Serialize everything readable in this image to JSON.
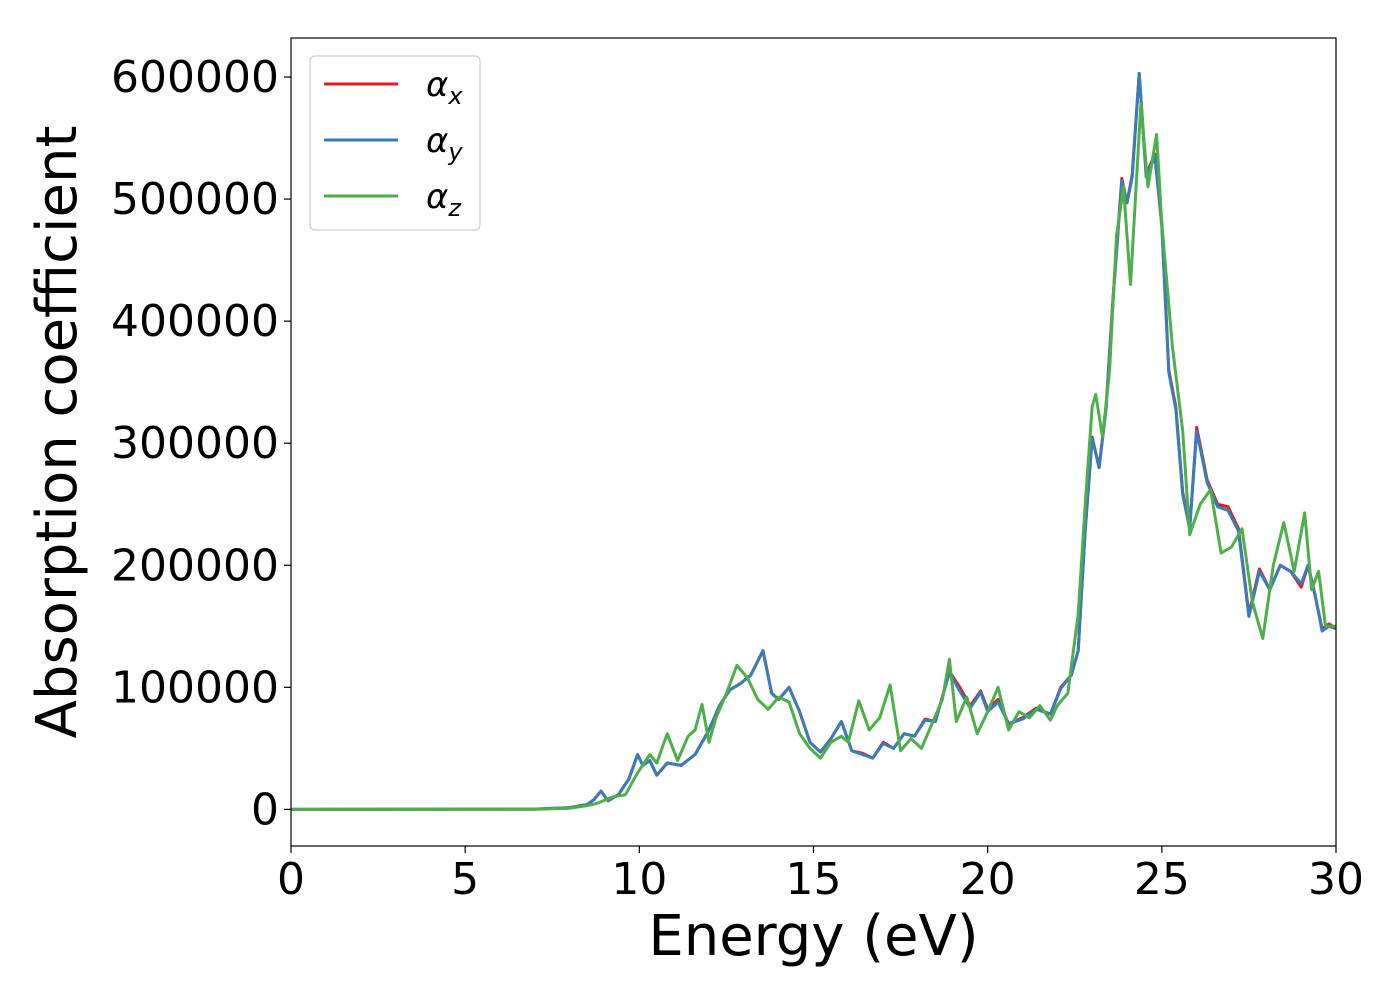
{
  "chart_data": {
    "type": "line",
    "title": "",
    "xlabel": "Energy (eV)",
    "ylabel": "Absorption coefficient",
    "xlim": [
      0,
      30
    ],
    "ylim": [
      -30000,
      632000
    ],
    "xticks": [
      0,
      5,
      10,
      15,
      20,
      25,
      30
    ],
    "yticks": [
      0,
      100000,
      200000,
      300000,
      400000,
      500000,
      600000
    ],
    "xtick_labels": [
      "0",
      "5",
      "10",
      "15",
      "20",
      "25",
      "30"
    ],
    "ytick_labels": [
      "0",
      "100000",
      "200000",
      "300000",
      "400000",
      "500000",
      "600000"
    ],
    "grid": false,
    "legend_position": "top-left",
    "series": [
      {
        "name": "α",
        "name_sub": "x",
        "color": "#e41a1c",
        "x": [
          0,
          7,
          8,
          8.5,
          8.7,
          8.9,
          9.1,
          9.4,
          9.7,
          9.95,
          10.1,
          10.3,
          10.5,
          10.8,
          11.2,
          11.6,
          12.0,
          12.3,
          12.6,
          12.9,
          13.2,
          13.55,
          13.8,
          14.0,
          14.3,
          14.6,
          14.9,
          15.2,
          15.5,
          15.8,
          16.1,
          16.4,
          16.7,
          17.0,
          17.3,
          17.6,
          17.9,
          18.2,
          18.5,
          18.9,
          19.2,
          19.5,
          19.8,
          20.0,
          20.3,
          20.6,
          21.0,
          21.4,
          21.8,
          22.1,
          22.4,
          22.6,
          22.8,
          23.0,
          23.2,
          23.4,
          23.6,
          23.85,
          24.0,
          24.15,
          24.35,
          24.55,
          24.8,
          25.0,
          25.2,
          25.4,
          25.6,
          25.8,
          26.0,
          26.3,
          26.6,
          26.9,
          27.2,
          27.5,
          27.8,
          28.1,
          28.4,
          28.7,
          29.0,
          29.2,
          29.4,
          29.6,
          29.8,
          30.0
        ],
        "values": [
          0,
          200,
          1500,
          4000,
          8000,
          15000,
          7000,
          12000,
          25000,
          45000,
          36000,
          40000,
          28000,
          38000,
          36000,
          45000,
          65000,
          85000,
          98000,
          103000,
          110000,
          130000,
          95000,
          90000,
          100000,
          80000,
          55000,
          47000,
          58000,
          72000,
          48000,
          46000,
          42000,
          55000,
          50000,
          62000,
          60000,
          74000,
          72000,
          113000,
          100000,
          85000,
          97000,
          82000,
          90000,
          70000,
          75000,
          83000,
          78000,
          100000,
          110000,
          130000,
          230000,
          305000,
          280000,
          330000,
          420000,
          517000,
          497000,
          520000,
          603000,
          520000,
          537000,
          480000,
          360000,
          330000,
          260000,
          230000,
          313000,
          270000,
          250000,
          248000,
          230000,
          160000,
          197000,
          180000,
          200000,
          195000,
          182000,
          200000,
          175000,
          148000,
          152000,
          148000
        ]
      },
      {
        "name": "α",
        "name_sub": "y",
        "color": "#377eb8",
        "x": [
          0,
          7,
          8,
          8.5,
          8.7,
          8.9,
          9.1,
          9.4,
          9.7,
          9.95,
          10.1,
          10.3,
          10.5,
          10.8,
          11.2,
          11.6,
          12.0,
          12.3,
          12.6,
          12.9,
          13.2,
          13.55,
          13.8,
          14.0,
          14.3,
          14.6,
          14.9,
          15.2,
          15.5,
          15.8,
          16.1,
          16.4,
          16.7,
          17.0,
          17.3,
          17.6,
          17.9,
          18.2,
          18.5,
          18.9,
          19.2,
          19.5,
          19.8,
          20.0,
          20.3,
          20.6,
          21.0,
          21.4,
          21.8,
          22.1,
          22.4,
          22.6,
          22.8,
          23.0,
          23.2,
          23.4,
          23.6,
          23.85,
          24.0,
          24.15,
          24.35,
          24.55,
          24.8,
          25.0,
          25.2,
          25.4,
          25.6,
          25.8,
          26.0,
          26.3,
          26.6,
          26.9,
          27.2,
          27.5,
          27.8,
          28.1,
          28.4,
          28.7,
          29.0,
          29.2,
          29.4,
          29.6,
          29.8,
          30.0
        ],
        "values": [
          0,
          200,
          1500,
          4000,
          8000,
          15000,
          7000,
          12000,
          25000,
          45000,
          36000,
          40000,
          28000,
          38000,
          36000,
          45000,
          65000,
          85000,
          98000,
          103000,
          110000,
          130000,
          95000,
          90000,
          100000,
          80000,
          55000,
          47000,
          58000,
          72000,
          48000,
          45000,
          42000,
          54000,
          50000,
          62000,
          60000,
          73000,
          72000,
          112000,
          97000,
          83000,
          96000,
          80000,
          88000,
          70000,
          74000,
          82000,
          78000,
          99000,
          110000,
          130000,
          228000,
          304000,
          280000,
          328000,
          418000,
          515000,
          497000,
          518000,
          603000,
          518000,
          535000,
          478000,
          358000,
          328000,
          258000,
          230000,
          310000,
          268000,
          248000,
          245000,
          228000,
          158000,
          195000,
          180000,
          200000,
          195000,
          185000,
          200000,
          176000,
          146000,
          150000,
          148000
        ]
      },
      {
        "name": "α",
        "name_sub": "z",
        "color": "#4daf4a",
        "x": [
          0,
          7,
          8,
          8.5,
          8.8,
          9.2,
          9.6,
          9.95,
          10.3,
          10.5,
          10.8,
          11.1,
          11.4,
          11.6,
          11.8,
          12.0,
          12.2,
          12.5,
          12.8,
          13.1,
          13.4,
          13.7,
          14.0,
          14.3,
          14.6,
          14.9,
          15.2,
          15.5,
          15.8,
          16.0,
          16.3,
          16.6,
          16.9,
          17.2,
          17.5,
          17.8,
          18.1,
          18.4,
          18.7,
          18.9,
          19.1,
          19.4,
          19.7,
          20.0,
          20.3,
          20.6,
          20.9,
          21.2,
          21.5,
          21.8,
          22.0,
          22.3,
          22.6,
          22.8,
          23.0,
          23.1,
          23.3,
          23.5,
          23.7,
          23.9,
          24.1,
          24.2,
          24.4,
          24.6,
          24.85,
          25.0,
          25.3,
          25.6,
          25.8,
          26.1,
          26.4,
          26.7,
          27.0,
          27.3,
          27.6,
          27.9,
          28.2,
          28.5,
          28.8,
          29.1,
          29.3,
          29.5,
          29.7,
          30.0
        ],
        "values": [
          0,
          100,
          1000,
          3000,
          5000,
          10000,
          12000,
          30000,
          45000,
          38000,
          62000,
          40000,
          60000,
          65000,
          86000,
          55000,
          75000,
          95000,
          118000,
          108000,
          90000,
          82000,
          92000,
          88000,
          62000,
          50000,
          42000,
          55000,
          60000,
          55000,
          89000,
          65000,
          75000,
          102000,
          48000,
          58000,
          50000,
          70000,
          90000,
          123000,
          72000,
          92000,
          62000,
          80000,
          100000,
          65000,
          80000,
          75000,
          85000,
          73000,
          85000,
          95000,
          160000,
          250000,
          330000,
          340000,
          305000,
          360000,
          470000,
          510000,
          430000,
          480000,
          578000,
          510000,
          553000,
          480000,
          380000,
          310000,
          225000,
          250000,
          262000,
          210000,
          215000,
          230000,
          170000,
          140000,
          200000,
          235000,
          195000,
          243000,
          180000,
          195000,
          150000,
          150000
        ]
      }
    ]
  }
}
